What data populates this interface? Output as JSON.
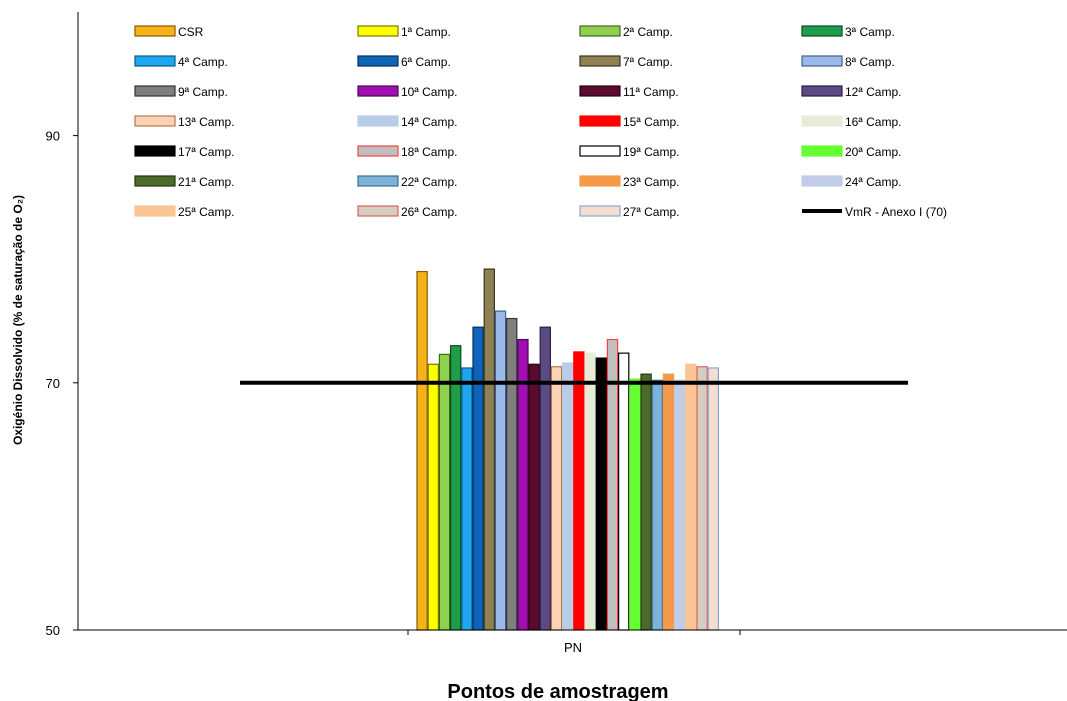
{
  "chart_data": {
    "type": "bar",
    "categories": [
      "PN"
    ],
    "xlabel": "Pontos de amostragem",
    "ylabel": "Oxigénio Dissolvido (% de saturação de O₂)",
    "ylim": [
      50,
      100
    ],
    "yticks": [
      50,
      70,
      90
    ],
    "grid": false,
    "legend_position": "top",
    "series": [
      {
        "name": "CSR",
        "value": 79,
        "fill": "#f5b21a",
        "stroke": "#8a5a00"
      },
      {
        "name": "1ª Camp.",
        "value": 71.5,
        "fill": "#ffff00",
        "stroke": "#7a7a00"
      },
      {
        "name": "2ª Camp.",
        "value": 72.3,
        "fill": "#8fd14f",
        "stroke": "#3c6b1a"
      },
      {
        "name": "3ª Camp.",
        "value": 73,
        "fill": "#1e9e4a",
        "stroke": "#0b4a20"
      },
      {
        "name": "4ª Camp.",
        "value": 71.2,
        "fill": "#1ea7f0",
        "stroke": "#0a5a8a"
      },
      {
        "name": "6ª Camp.",
        "value": 74.5,
        "fill": "#0e64b8",
        "stroke": "#06305a"
      },
      {
        "name": "7ª Camp.",
        "value": 79.2,
        "fill": "#8f8252",
        "stroke": "#3a3420"
      },
      {
        "name": "8ª Camp.",
        "value": 75.8,
        "fill": "#9ab8e8",
        "stroke": "#44608e"
      },
      {
        "name": "9ª Camp.",
        "value": 75.2,
        "fill": "#7f7f7f",
        "stroke": "#333333"
      },
      {
        "name": "10ª Camp.",
        "value": 73.5,
        "fill": "#a010b0",
        "stroke": "#4a0852"
      },
      {
        "name": "11ª Camp.",
        "value": 71.5,
        "fill": "#5c0a2e",
        "stroke": "#2a0414"
      },
      {
        "name": "12ª Camp.",
        "value": 74.5,
        "fill": "#5c4a86",
        "stroke": "#2a2040"
      },
      {
        "name": "13ª Camp.",
        "value": 71.3,
        "fill": "#fbd2b4",
        "stroke": "#b07a50"
      },
      {
        "name": "14ª Camp.",
        "value": 71.6,
        "fill": "#b8cde8",
        "stroke": "#b8cde8"
      },
      {
        "name": "15ª Camp.",
        "value": 72.5,
        "fill": "#ff0000",
        "stroke": "#ff0000"
      },
      {
        "name": "16ª Camp.",
        "value": 72.4,
        "fill": "#e6ecd8",
        "stroke": "#e6ecd8"
      },
      {
        "name": "17ª Camp.",
        "value": 72,
        "fill": "#000000",
        "stroke": "#000000"
      },
      {
        "name": "18ª Camp.",
        "value": 73.5,
        "fill": "#bfbfbf",
        "stroke": "#ff4040"
      },
      {
        "name": "19ª Camp.",
        "value": 72.4,
        "fill": "#ffffff",
        "stroke": "#000000"
      },
      {
        "name": "20ª Camp.",
        "value": 70.3,
        "fill": "#66ff33",
        "stroke": "#66ff33"
      },
      {
        "name": "21ª Camp.",
        "value": 70.7,
        "fill": "#4b6b2a",
        "stroke": "#24360f"
      },
      {
        "name": "22ª Camp.",
        "value": 70.2,
        "fill": "#7fb2d8",
        "stroke": "#3c6e94"
      },
      {
        "name": "23ª Camp.",
        "value": 70.7,
        "fill": "#f59a4a",
        "stroke": "#f59a4a"
      },
      {
        "name": "24ª Camp.",
        "value": 70.2,
        "fill": "#c0cce8",
        "stroke": "#c0cce8"
      },
      {
        "name": "25ª Camp.",
        "value": 71.5,
        "fill": "#fbc494",
        "stroke": "#fbc494"
      },
      {
        "name": "26ª Camp.",
        "value": 71.3,
        "fill": "#d4cec0",
        "stroke": "#e06060"
      },
      {
        "name": "27ª Camp.",
        "value": 71.2,
        "fill": "#f5ded0",
        "stroke": "#8aa6d8"
      }
    ],
    "reference_line": {
      "name": "VmR - Anexo I (70)",
      "value": 70,
      "color": "#000000"
    }
  }
}
